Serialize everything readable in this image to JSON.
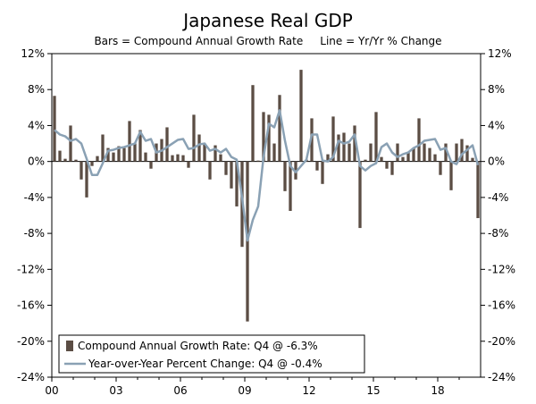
{
  "chart_data": {
    "type": "bar",
    "title": "Japanese Real GDP",
    "subtitle": "Bars = Compound Annual Growth Rate     Line = Yr/Yr % Change",
    "ylim": [
      -24,
      12
    ],
    "y_ticks": [
      "12%",
      "8%",
      "4%",
      "0%",
      "-4%",
      "-8%",
      "-12%",
      "-16%",
      "-20%",
      "-24%"
    ],
    "x_ticks": [
      "00",
      "03",
      "06",
      "09",
      "12",
      "15",
      "18"
    ],
    "grid": false,
    "legend_position": "bottom-left",
    "series": [
      {
        "name": "Compound Annual Growth Rate: Q4 @ -6.3%",
        "type": "bar",
        "color": "#5b4d44",
        "x": [
          "2000 Q1",
          "2000 Q2",
          "2000 Q3",
          "2000 Q4",
          "2001 Q1",
          "2001 Q2",
          "2001 Q3",
          "2001 Q4",
          "2002 Q1",
          "2002 Q2",
          "2002 Q3",
          "2002 Q4",
          "2003 Q1",
          "2003 Q2",
          "2003 Q3",
          "2003 Q4",
          "2004 Q1",
          "2004 Q2",
          "2004 Q3",
          "2004 Q4",
          "2005 Q1",
          "2005 Q2",
          "2005 Q3",
          "2005 Q4",
          "2006 Q1",
          "2006 Q2",
          "2006 Q3",
          "2006 Q4",
          "2007 Q1",
          "2007 Q2",
          "2007 Q3",
          "2007 Q4",
          "2008 Q1",
          "2008 Q2",
          "2008 Q3",
          "2008 Q4",
          "2009 Q1",
          "2009 Q2",
          "2009 Q3",
          "2009 Q4",
          "2010 Q1",
          "2010 Q2",
          "2010 Q3",
          "2010 Q4",
          "2011 Q1",
          "2011 Q2",
          "2011 Q3",
          "2011 Q4",
          "2012 Q1",
          "2012 Q2",
          "2012 Q3",
          "2012 Q4",
          "2013 Q1",
          "2013 Q2",
          "2013 Q3",
          "2013 Q4",
          "2014 Q1",
          "2014 Q2",
          "2014 Q3",
          "2014 Q4",
          "2015 Q1",
          "2015 Q2",
          "2015 Q3",
          "2015 Q4",
          "2016 Q1",
          "2016 Q2",
          "2016 Q3",
          "2016 Q4",
          "2017 Q1",
          "2017 Q2",
          "2017 Q3",
          "2017 Q4",
          "2018 Q1",
          "2018 Q2",
          "2018 Q3",
          "2018 Q4",
          "2019 Q1",
          "2019 Q2",
          "2019 Q3",
          "2019 Q4"
        ],
        "values": [
          7.3,
          1.2,
          0.3,
          4.0,
          0.2,
          -2.0,
          -4.0,
          -0.5,
          0.6,
          3.0,
          1.5,
          1.0,
          1.7,
          1.5,
          4.5,
          2.0,
          3.5,
          1.0,
          -0.8,
          2.0,
          2.5,
          3.8,
          0.7,
          0.8,
          0.7,
          -0.7,
          5.2,
          3.0,
          2.0,
          -2.0,
          1.8,
          0.8,
          -1.5,
          -3.0,
          -5.0,
          -9.5,
          -17.8,
          8.5,
          0.1,
          5.5,
          5.2,
          2.0,
          7.4,
          -3.3,
          -5.5,
          -2.0,
          10.2,
          0.2,
          4.8,
          -1.0,
          -2.5,
          0.8,
          5.0,
          3.0,
          3.2,
          2.0,
          4.0,
          -7.4,
          0.2,
          2.0,
          5.5,
          0.5,
          -0.8,
          -1.5,
          2.0,
          0.5,
          1.0,
          1.5,
          4.8,
          2.0,
          1.5,
          0.8,
          -1.5,
          2.0,
          -3.2,
          2.0,
          2.5,
          1.8,
          0.4,
          -6.3
        ]
      },
      {
        "name": "Year-over-Year Percent Change: Q4 @ -0.4%",
        "type": "line",
        "color": "#8aa1b4",
        "x": [
          "2000 Q1",
          "2000 Q2",
          "2000 Q3",
          "2000 Q4",
          "2001 Q1",
          "2001 Q2",
          "2001 Q3",
          "2001 Q4",
          "2002 Q1",
          "2002 Q2",
          "2002 Q3",
          "2002 Q4",
          "2003 Q1",
          "2003 Q2",
          "2003 Q3",
          "2003 Q4",
          "2004 Q1",
          "2004 Q2",
          "2004 Q3",
          "2004 Q4",
          "2005 Q1",
          "2005 Q2",
          "2005 Q3",
          "2005 Q4",
          "2006 Q1",
          "2006 Q2",
          "2006 Q3",
          "2006 Q4",
          "2007 Q1",
          "2007 Q2",
          "2007 Q3",
          "2007 Q4",
          "2008 Q1",
          "2008 Q2",
          "2008 Q3",
          "2008 Q4",
          "2009 Q1",
          "2009 Q2",
          "2009 Q3",
          "2009 Q4",
          "2010 Q1",
          "2010 Q2",
          "2010 Q3",
          "2010 Q4",
          "2011 Q1",
          "2011 Q2",
          "2011 Q3",
          "2011 Q4",
          "2012 Q1",
          "2012 Q2",
          "2012 Q3",
          "2012 Q4",
          "2013 Q1",
          "2013 Q2",
          "2013 Q3",
          "2013 Q4",
          "2014 Q1",
          "2014 Q2",
          "2014 Q3",
          "2014 Q4",
          "2015 Q1",
          "2015 Q2",
          "2015 Q3",
          "2015 Q4",
          "2016 Q1",
          "2016 Q2",
          "2016 Q3",
          "2016 Q4",
          "2017 Q1",
          "2017 Q2",
          "2017 Q3",
          "2017 Q4",
          "2018 Q1",
          "2018 Q2",
          "2018 Q3",
          "2018 Q4",
          "2019 Q1",
          "2019 Q2",
          "2019 Q3",
          "2019 Q4"
        ],
        "values": [
          3.5,
          3.0,
          2.8,
          2.3,
          2.5,
          2.0,
          0.3,
          -1.5,
          -1.5,
          -0.2,
          1.2,
          1.3,
          1.5,
          1.6,
          1.8,
          2.0,
          3.3,
          2.3,
          2.5,
          1.0,
          1.2,
          1.6,
          2.0,
          2.4,
          2.5,
          1.4,
          1.5,
          1.9,
          2.0,
          1.2,
          1.4,
          1.0,
          1.4,
          0.5,
          0.2,
          -4.0,
          -8.8,
          -6.5,
          -5.0,
          0.5,
          4.2,
          3.8,
          5.7,
          2.3,
          -0.5,
          -1.2,
          -0.5,
          0.2,
          3.0,
          3.0,
          0.1,
          0.0,
          0.5,
          2.3,
          2.0,
          2.2,
          3.0,
          -0.5,
          -1.0,
          -0.5,
          -0.2,
          1.6,
          2.0,
          1.0,
          0.5,
          0.8,
          1.0,
          1.5,
          1.8,
          2.3,
          2.4,
          2.5,
          1.3,
          1.5,
          0.0,
          -0.3,
          0.8,
          1.3,
          1.8,
          -0.4
        ]
      }
    ]
  }
}
